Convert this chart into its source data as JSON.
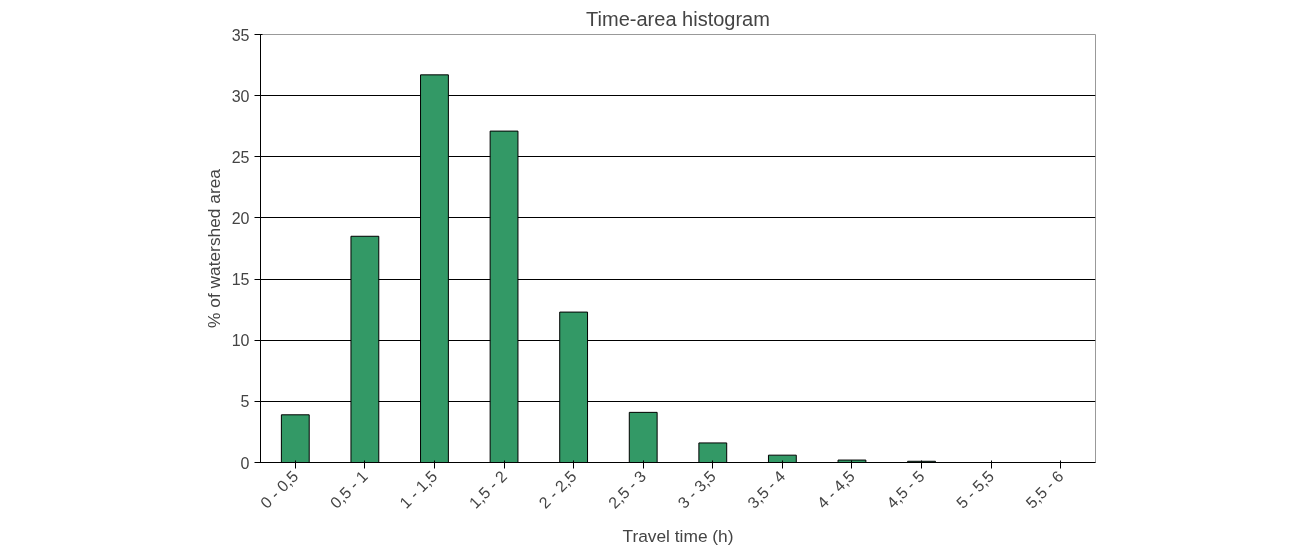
{
  "chart_data": {
    "type": "bar",
    "title": "Time-area histogram",
    "xlabel": "Travel time (h)",
    "ylabel": "% of watershed area",
    "categories": [
      "0 - 0,5",
      "0,5 - 1",
      "1 - 1,5",
      "1,5 - 2",
      "2 - 2,5",
      "2,5 - 3",
      "3 - 3,5",
      "3,5 - 4",
      "4 - 4,5",
      "4,5 - 5",
      "5 - 5,5",
      "5,5 - 6"
    ],
    "values": [
      3.9,
      18.5,
      31.7,
      27.1,
      12.3,
      4.1,
      1.6,
      0.6,
      0.2,
      0.1,
      0,
      0
    ],
    "color": "#339966",
    "ylim": [
      0,
      35
    ],
    "yticks": [
      0,
      5,
      10,
      15,
      20,
      25,
      30,
      35
    ],
    "grid": "y"
  }
}
